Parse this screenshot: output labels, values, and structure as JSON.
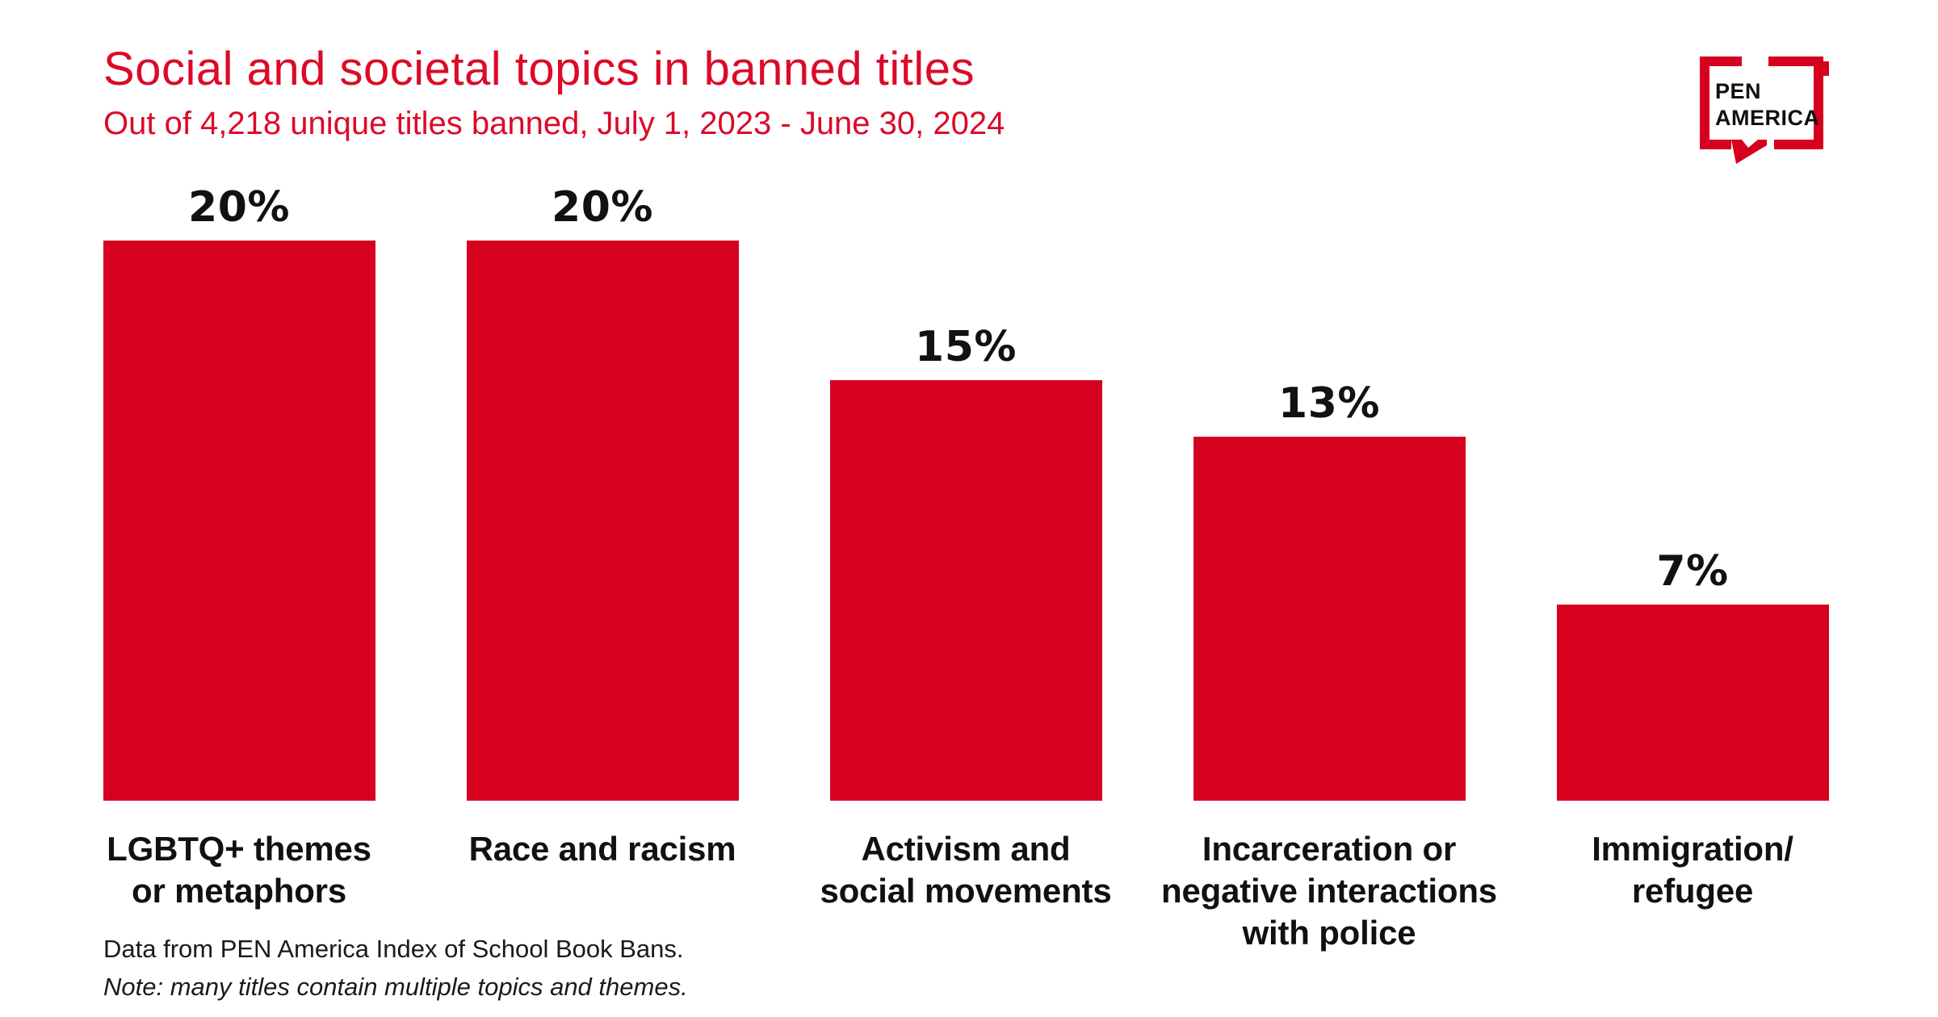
{
  "header": {
    "title": "Social and societal topics in banned titles",
    "subtitle": "Out of 4,218 unique titles banned, July 1, 2023 - June 30, 2024"
  },
  "logo": {
    "line1": "PEN",
    "line2": "AMERICA"
  },
  "chart_data": {
    "type": "bar",
    "title": "Social and societal topics in banned titles",
    "subtitle": "Out of 4,218 unique titles banned, July 1, 2023 - June 30, 2024",
    "categories": [
      "LGBTQ+ themes or metaphors",
      "Race and racism",
      "Activism and social movements",
      "Incarceration or negative interactions with police",
      "Immigration/refugee"
    ],
    "category_label_lines": [
      [
        "LGBTQ+ themes",
        "or metaphors"
      ],
      [
        "Race and racism"
      ],
      [
        "Activism and",
        "social movements"
      ],
      [
        "Incarceration or",
        "negative interactions",
        "with police"
      ],
      [
        "Immigration/",
        "refugee"
      ]
    ],
    "values": [
      20,
      20,
      15,
      13,
      7
    ],
    "value_labels": [
      "20%",
      "20%",
      "15%",
      "13%",
      "7%"
    ],
    "unit": "%",
    "ylim": [
      0,
      20
    ],
    "grid": false,
    "legend": false,
    "value_label_position": "above-bar",
    "bar_color": "#d6001f"
  },
  "footer": {
    "source": "Data from PEN America Index of School Book Bans.",
    "note": "Note: many titles contain multiple topics and themes."
  },
  "colors": {
    "bar_red": "#d6001f",
    "title_red": "#dc0a28",
    "text_black": "#111111",
    "background": "#ffffff"
  }
}
